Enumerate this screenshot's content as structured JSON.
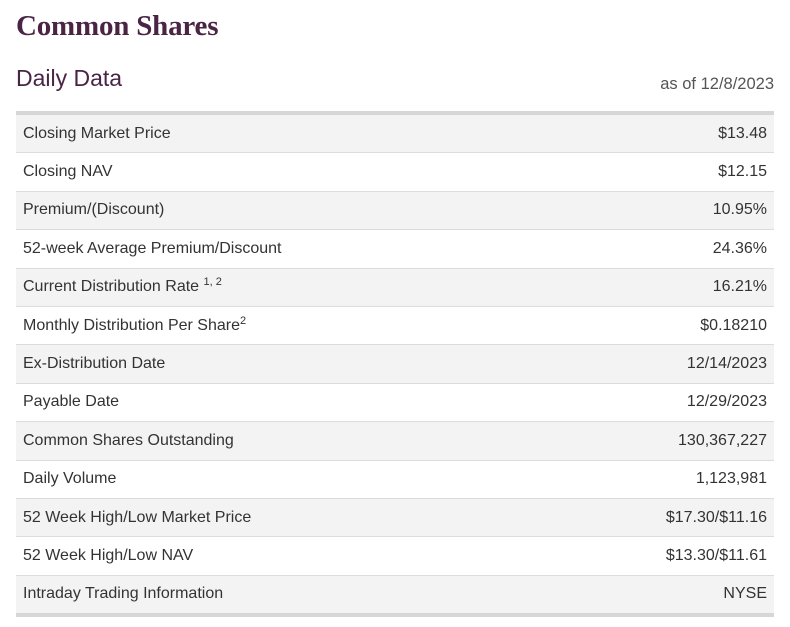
{
  "header": {
    "title": "Common Shares",
    "section_title": "Daily Data",
    "as_of": "as of 12/8/2023"
  },
  "rows": [
    {
      "label": "Closing Market Price",
      "sup": "",
      "value": "$13.48"
    },
    {
      "label": "Closing NAV",
      "sup": "",
      "value": "$12.15"
    },
    {
      "label": "Premium/(Discount)",
      "sup": "",
      "value": "10.95%"
    },
    {
      "label": "52-week Average Premium/Discount",
      "sup": "",
      "value": "24.36%"
    },
    {
      "label": "Current Distribution Rate ",
      "sup": "1, 2",
      "value": "16.21%"
    },
    {
      "label": "Monthly Distribution Per Share",
      "sup": "2",
      "value": "$0.18210"
    },
    {
      "label": "Ex-Distribution Date",
      "sup": "",
      "value": "12/14/2023"
    },
    {
      "label": "Payable Date",
      "sup": "",
      "value": "12/29/2023"
    },
    {
      "label": "Common Shares Outstanding",
      "sup": "",
      "value": "130,367,227"
    },
    {
      "label": "Daily Volume",
      "sup": "",
      "value": "1,123,981"
    },
    {
      "label": "52 Week High/Low Market Price",
      "sup": "",
      "value": "$17.30/$11.16"
    },
    {
      "label": "52 Week High/Low NAV",
      "sup": "",
      "value": "$13.30/$11.61"
    },
    {
      "label": "Intraday Trading Information",
      "sup": "",
      "value": "NYSE"
    }
  ]
}
